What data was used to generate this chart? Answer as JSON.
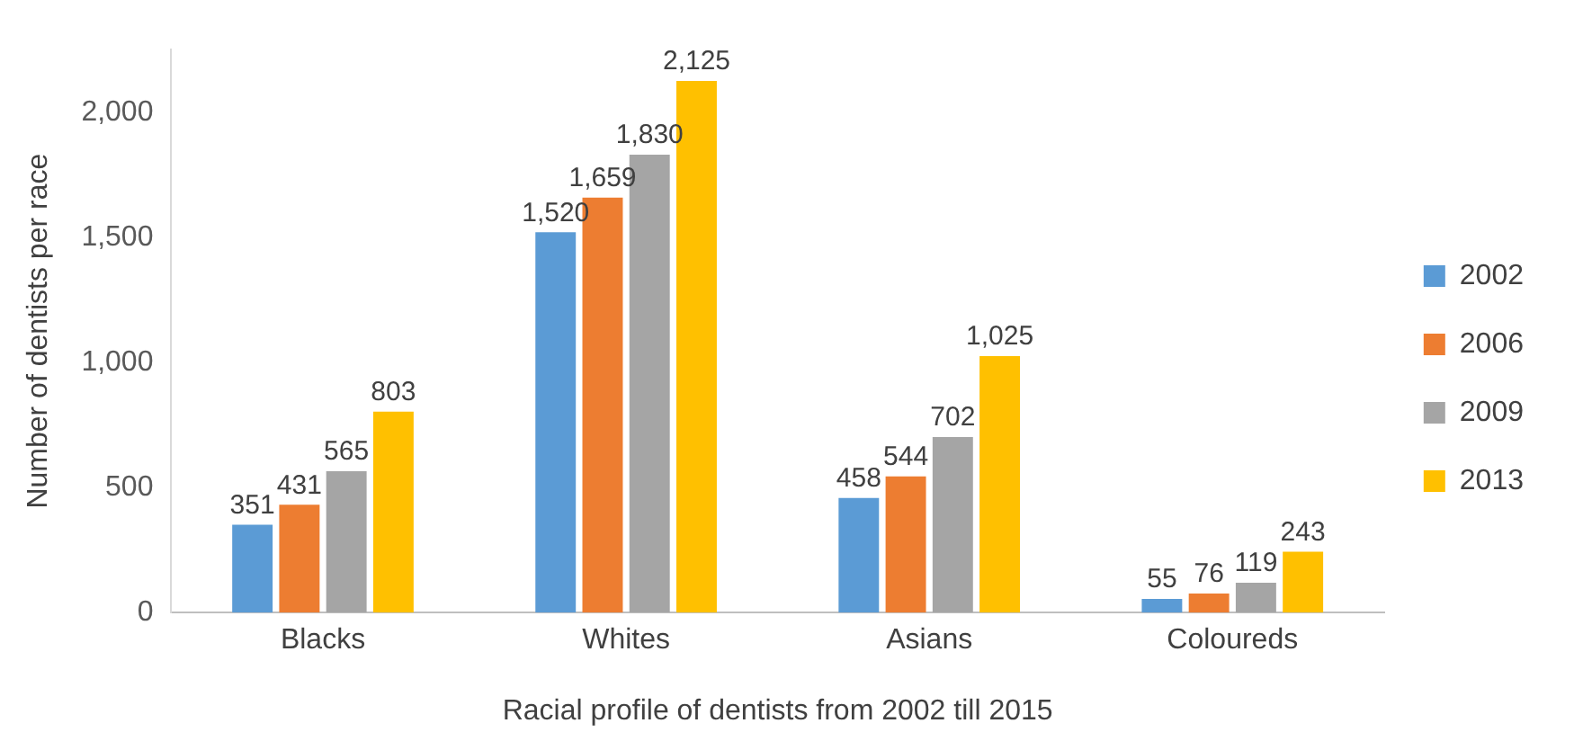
{
  "chart_data": {
    "type": "bar",
    "xlabel": "Racial profile of dentists from 2002 till 2015",
    "ylabel": "Number of dentists per race",
    "categories": [
      "Blacks",
      "Whites",
      "Asians",
      "Coloureds"
    ],
    "series": [
      {
        "name": "2002",
        "color": "#5b9bd5",
        "values": [
          351,
          1520,
          458,
          55
        ],
        "value_labels": [
          "351",
          "1,520",
          "458",
          "55"
        ]
      },
      {
        "name": "2006",
        "color": "#ed7d31",
        "values": [
          431,
          1659,
          544,
          76
        ],
        "value_labels": [
          "431",
          "1,659",
          "544",
          "76"
        ]
      },
      {
        "name": "2009",
        "color": "#a5a5a5",
        "values": [
          565,
          1830,
          702,
          119
        ],
        "value_labels": [
          "565",
          "1,830",
          "702",
          "119"
        ]
      },
      {
        "name": "2013",
        "color": "#ffc000",
        "values": [
          803,
          2125,
          1025,
          243
        ],
        "value_labels": [
          "803",
          "2,125",
          "1,025",
          "243"
        ]
      }
    ],
    "ylim": [
      0,
      2250
    ],
    "yticks": [
      0,
      500,
      {
        "value": 1000,
        "label": "1,000"
      },
      {
        "value": 1500,
        "label": "1,500"
      },
      {
        "value": 2000,
        "label": "2,000"
      }
    ],
    "grid": false,
    "legend": "right"
  }
}
